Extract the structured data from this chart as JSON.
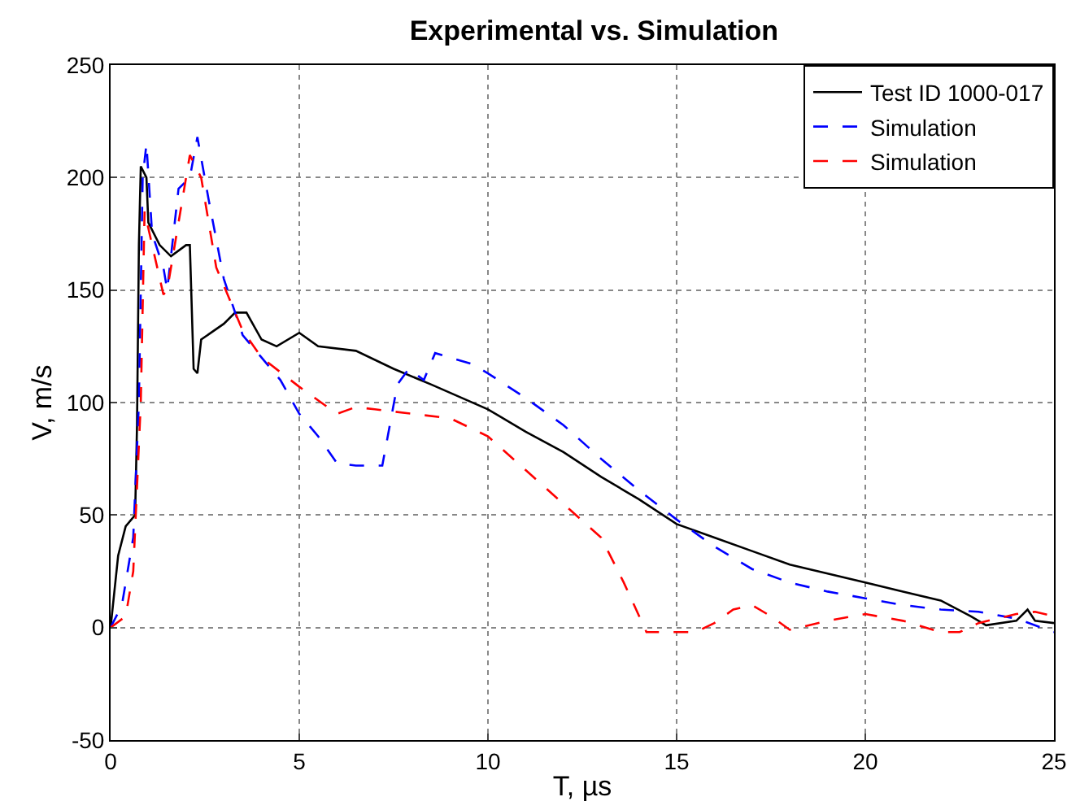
{
  "chart_data": {
    "type": "line",
    "title": "Experimental vs. Simulation",
    "xlabel": "T, µs",
    "ylabel": "V, m/s",
    "xlim": [
      0,
      25
    ],
    "xticks": [
      0,
      5,
      10,
      15,
      20,
      25
    ],
    "ylim": [
      -50,
      250
    ],
    "yticks": [
      -50,
      0,
      50,
      100,
      150,
      200,
      250
    ],
    "grid": true,
    "legend": "top right",
    "series": [
      {
        "name": "Test ID 1000-017",
        "color": "#000000",
        "line_style": "solid",
        "x": [
          0,
          0.2,
          0.4,
          0.65,
          0.7,
          0.75,
          0.8,
          0.95,
          1.0,
          1.3,
          1.6,
          2.0,
          2.1,
          2.2,
          2.3,
          2.4,
          3.0,
          3.3,
          3.6,
          4.0,
          4.4,
          5.0,
          5.5,
          6.5,
          7.5,
          8.5,
          10,
          11,
          12,
          13,
          14,
          15,
          16,
          17,
          18,
          19,
          20,
          21,
          22,
          22.8,
          23.2,
          24,
          24.3,
          24.5,
          25
        ],
        "values": [
          0,
          32,
          45,
          50,
          90,
          170,
          205,
          200,
          180,
          170,
          165,
          170,
          170,
          115,
          113,
          128,
          135,
          140,
          140,
          128,
          125,
          131,
          125,
          123,
          115,
          108,
          97,
          87,
          78,
          67,
          57,
          46,
          40,
          34,
          28,
          24,
          20,
          16,
          12,
          5,
          1,
          3,
          8,
          3,
          2
        ]
      },
      {
        "name": "Simulation",
        "color": "#0000ff",
        "line_style": "dashed",
        "x": [
          0,
          0.3,
          0.6,
          0.75,
          0.85,
          0.95,
          1.1,
          1.4,
          1.5,
          1.8,
          2.1,
          2.3,
          2.6,
          3,
          3.5,
          4,
          4.5,
          5,
          5.5,
          6,
          6.5,
          7.2,
          7.6,
          7.9,
          8.3,
          8.6,
          9,
          9.6,
          10,
          11,
          12,
          13,
          14,
          15,
          16,
          17,
          18,
          19,
          20,
          21,
          22,
          23,
          24,
          25
        ],
        "values": [
          0,
          10,
          40,
          100,
          200,
          215,
          175,
          160,
          150,
          195,
          200,
          218,
          190,
          155,
          130,
          120,
          110,
          95,
          85,
          73,
          72,
          72,
          108,
          115,
          110,
          122,
          120,
          117,
          113,
          102,
          90,
          75,
          61,
          48,
          36,
          26,
          20,
          16,
          13,
          10,
          8,
          7,
          4,
          -2
        ]
      },
      {
        "name": "Simulation",
        "color": "#ff0000",
        "line_style": "dashed",
        "x": [
          0,
          0.4,
          0.6,
          0.8,
          0.9,
          1.1,
          1.4,
          1.5,
          1.8,
          2.1,
          2.4,
          2.8,
          3.5,
          4,
          5,
          6,
          6.5,
          7,
          8,
          9,
          10,
          11,
          12,
          13,
          13.6,
          14.2,
          15,
          15.5,
          16,
          16.5,
          17,
          17.5,
          18,
          19,
          20,
          21,
          22,
          22.5,
          23,
          24,
          24.5,
          25
        ],
        "values": [
          0,
          5,
          25,
          100,
          185,
          170,
          148,
          150,
          180,
          210,
          200,
          160,
          132,
          120,
          107,
          95,
          98,
          97,
          95,
          93,
          85,
          70,
          55,
          40,
          20,
          -2,
          -2,
          -2,
          2,
          8,
          10,
          5,
          -1,
          3,
          6,
          3,
          -2,
          -2,
          2,
          6,
          7,
          5
        ]
      }
    ]
  }
}
